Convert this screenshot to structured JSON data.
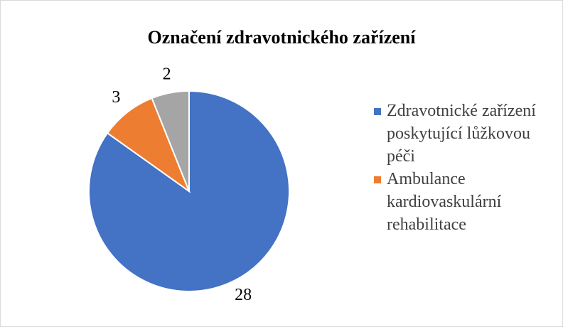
{
  "chart_data": {
    "type": "pie",
    "title": "Označení zdravotnického zařízení",
    "categories": [
      "Zdravotnické zařízení poskytující lůžkovou péči",
      "Ambulance kardiovaskulární rehabilitace",
      null
    ],
    "values": [
      28,
      3,
      2
    ],
    "colors": [
      "#4472c4",
      "#ed7d31",
      "#a5a5a5"
    ],
    "legend": "right"
  }
}
